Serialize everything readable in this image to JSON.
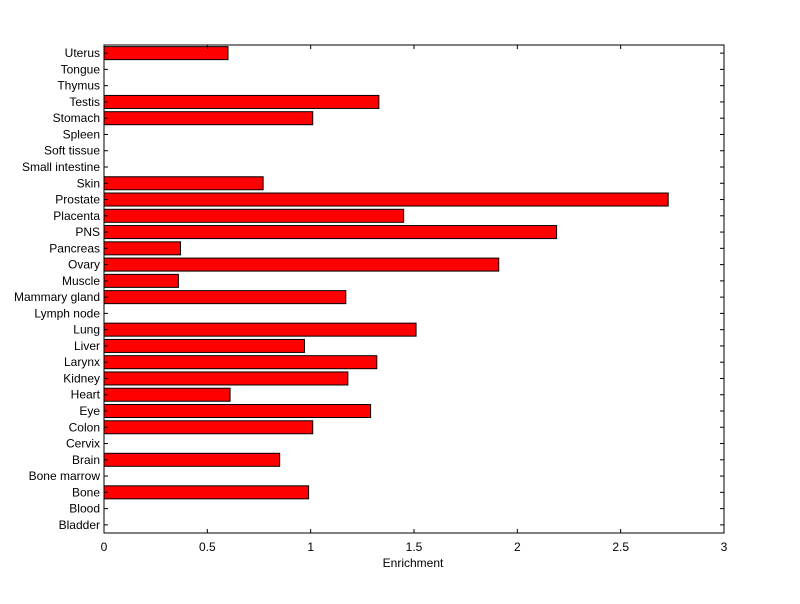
{
  "chart_data": {
    "type": "bar",
    "orientation": "horizontal",
    "xlabel": "Enrichment",
    "ylabel": "",
    "title": "",
    "xlim": [
      0,
      3
    ],
    "xticks": [
      "0",
      "0.5",
      "1",
      "1.5",
      "2",
      "2.5",
      "3"
    ],
    "grid": false,
    "bar_color": "#ff0000",
    "categories": [
      "Bladder",
      "Blood",
      "Bone",
      "Bone marrow",
      "Brain",
      "Cervix",
      "Colon",
      "Eye",
      "Heart",
      "Kidney",
      "Larynx",
      "Liver",
      "Lung",
      "Lymph node",
      "Mammary gland",
      "Muscle",
      "Ovary",
      "Pancreas",
      "PNS",
      "Placenta",
      "Prostate",
      "Skin",
      "Small intestine",
      "Soft tissue",
      "Spleen",
      "Stomach",
      "Testis",
      "Thymus",
      "Tongue",
      "Uterus"
    ],
    "values": [
      0,
      0,
      0.99,
      0,
      0.85,
      0,
      1.01,
      1.29,
      0.61,
      1.18,
      1.32,
      0.97,
      1.51,
      0,
      1.17,
      0.36,
      1.91,
      0.37,
      2.19,
      1.45,
      2.73,
      0.77,
      0,
      0,
      0,
      1.01,
      1.33,
      0,
      0,
      0.6
    ]
  }
}
